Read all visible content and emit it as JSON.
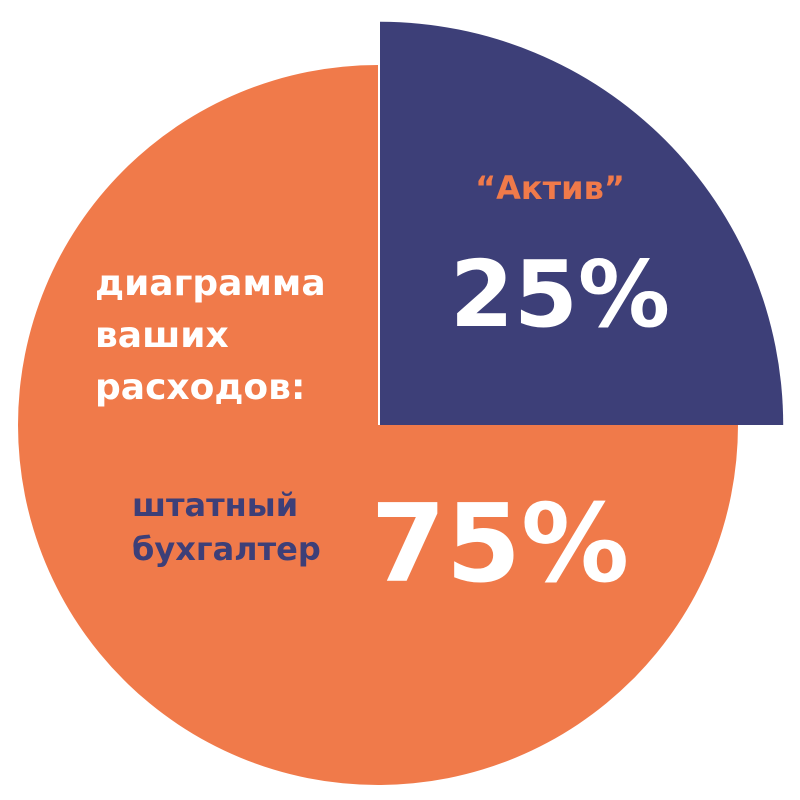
{
  "chart_data": {
    "type": "pie",
    "title": "диаграмма ваших расходов:",
    "categories": [
      "“Актив”",
      "штатный бухгалтер"
    ],
    "values": [
      25,
      75
    ],
    "value_labels": [
      "25%",
      "75%"
    ],
    "colors": [
      "#3d3f78",
      "#f07a4a"
    ]
  }
}
